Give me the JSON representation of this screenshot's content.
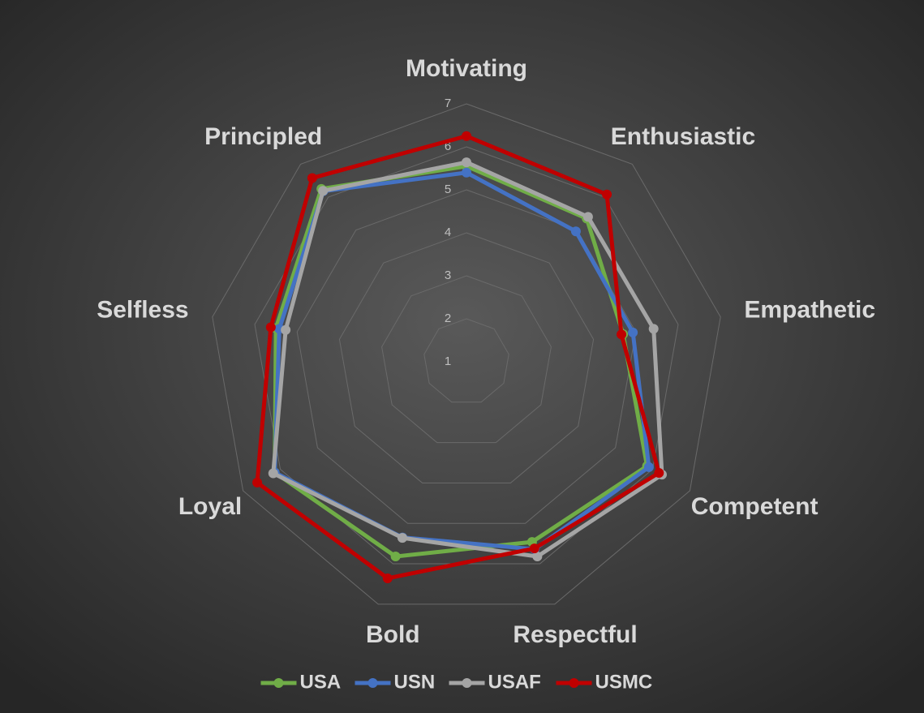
{
  "chart_data": {
    "type": "radar",
    "categories": [
      "Motivating",
      "Enthusiastic",
      "Empathetic",
      "Competent",
      "Respectful",
      "Bold",
      "Loyal",
      "Selfless",
      "Principled"
    ],
    "series": [
      {
        "name": "USA",
        "color": "#70ad47",
        "values": [
          5.55,
          5.35,
          4.7,
          5.85,
          5.46,
          5.82,
          6.15,
          5.5,
          6.25
        ]
      },
      {
        "name": "USN",
        "color": "#4472c4",
        "values": [
          5.4,
          4.96,
          4.93,
          5.9,
          5.64,
          5.35,
          6.15,
          5.42,
          6.18
        ]
      },
      {
        "name": "USAF",
        "color": "#a5a5a5",
        "values": [
          5.64,
          5.4,
          5.42,
          6.25,
          5.82,
          5.36,
          6.19,
          5.27,
          6.19
        ]
      },
      {
        "name": "USMC",
        "color": "#c00000",
        "values": [
          6.25,
          6.08,
          4.66,
          6.17,
          5.62,
          6.36,
          6.62,
          5.62,
          6.58
        ]
      }
    ],
    "ylim": [
      1,
      7
    ],
    "yticks": [
      1,
      2,
      3,
      4,
      5,
      6,
      7
    ],
    "grid": true,
    "legend": "bottom"
  }
}
